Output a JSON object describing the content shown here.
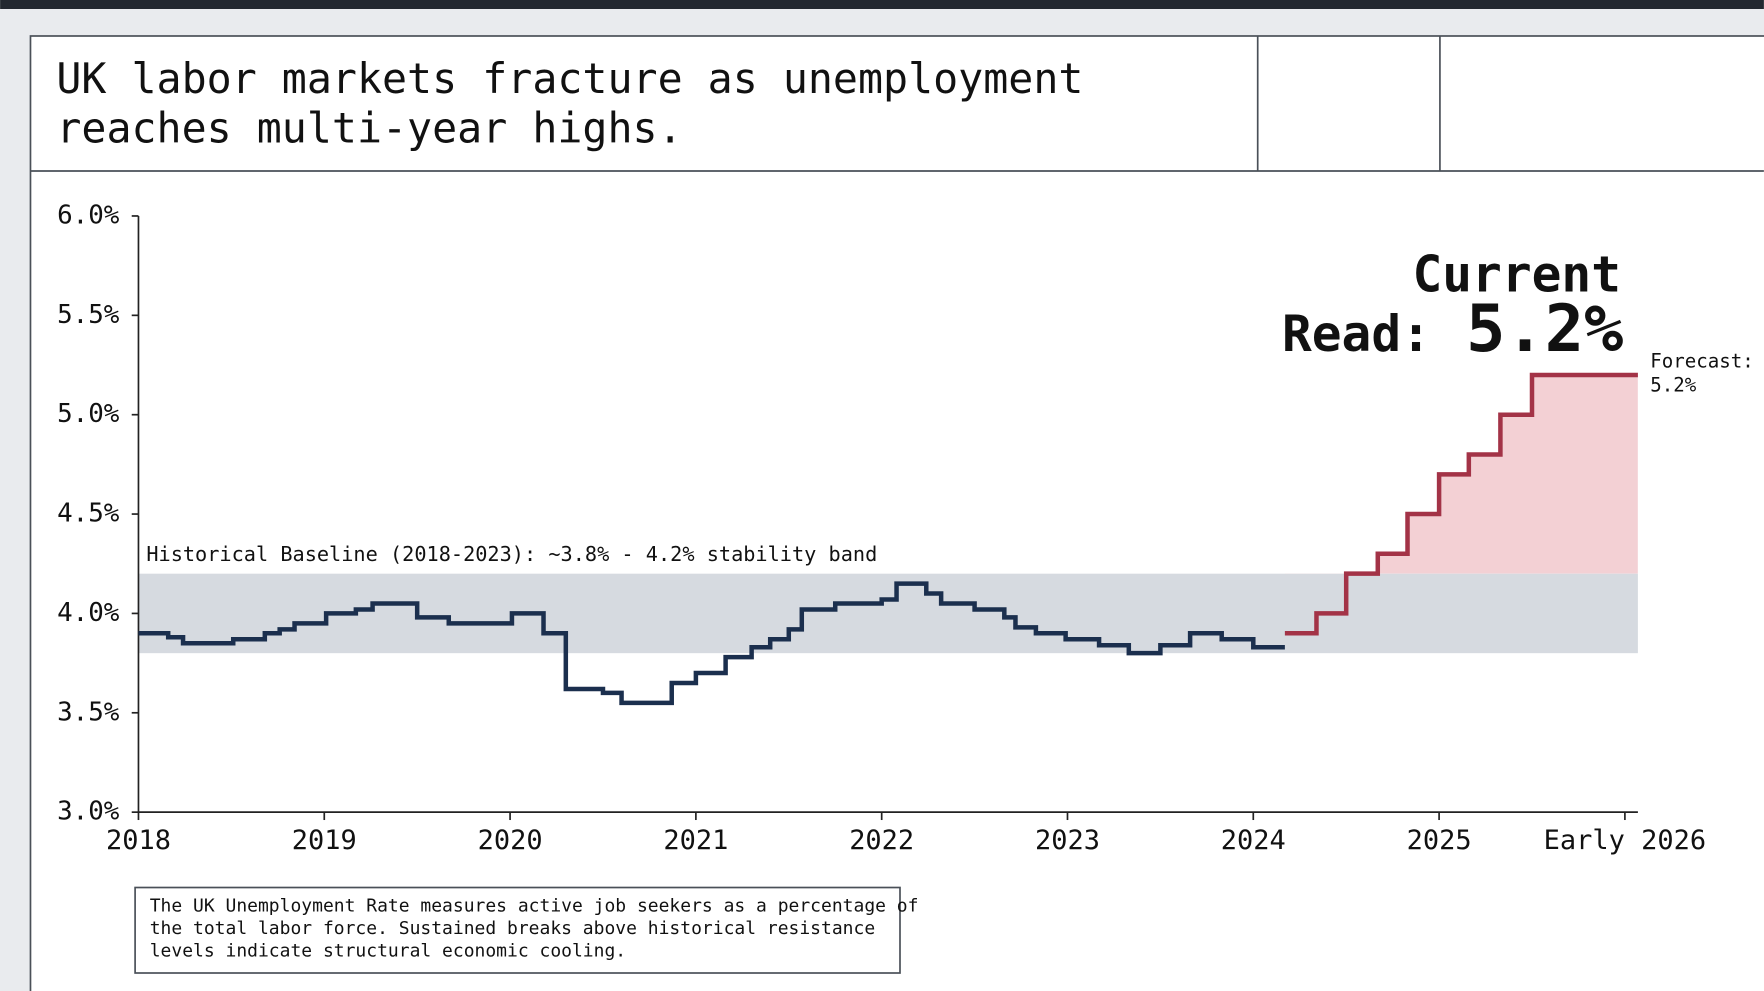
{
  "chart_data": {
    "type": "step",
    "title": [
      "UK labor markets fracture as unemployment",
      "reaches multi-year highs."
    ],
    "x": [
      2018,
      2018.16,
      2018.24,
      2018.51,
      2018.68,
      2018.76,
      2018.84,
      2019.01,
      2019.17,
      2019.26,
      2019.5,
      2019.67,
      2020.01,
      2020.18,
      2020.3,
      2020.5,
      2020.6,
      2020.87,
      2021.0,
      2021.16,
      2021.3,
      2021.4,
      2021.5,
      2021.57,
      2021.75,
      2022.0,
      2022.08,
      2022.24,
      2022.32,
      2022.5,
      2022.66,
      2022.72,
      2022.83,
      2022.99,
      2023.17,
      2023.33,
      2023.5,
      2023.66,
      2023.83,
      2024.0,
      2024.17,
      2024.34,
      2024.5,
      2024.67,
      2024.83,
      2025.0,
      2025.16,
      2025.33,
      2025.5,
      2026.07
    ],
    "series": [
      {
        "color": "#1b2f4e",
        "values": [
          3.9,
          3.88,
          3.85,
          3.87,
          3.9,
          3.92,
          3.95,
          4.0,
          4.02,
          4.05,
          3.98,
          3.95,
          4.0,
          3.9,
          3.62,
          3.6,
          3.55,
          3.65,
          3.7,
          3.78,
          3.83,
          3.87,
          3.92,
          4.02,
          4.05,
          4.07,
          4.15,
          4.1,
          4.05,
          4.02,
          3.98,
          3.93,
          3.9,
          3.87,
          3.84,
          3.8,
          3.84,
          3.9,
          3.87,
          3.83,
          3.83,
          null,
          null,
          null,
          null,
          null,
          null,
          null,
          null,
          null
        ]
      },
      {
        "color": "#a33347",
        "fill": "#f3d0d4",
        "values": [
          null,
          null,
          null,
          null,
          null,
          null,
          null,
          null,
          null,
          null,
          null,
          null,
          null,
          null,
          null,
          null,
          null,
          null,
          null,
          null,
          null,
          null,
          null,
          null,
          null,
          null,
          null,
          null,
          null,
          null,
          null,
          null,
          null,
          null,
          null,
          null,
          null,
          null,
          null,
          null,
          3.9,
          4.0,
          4.2,
          4.3,
          4.5,
          4.7,
          4.8,
          5.0,
          5.2,
          5.2
        ]
      }
    ],
    "xlim": [
      2018,
      2026.07
    ],
    "xticks": [
      2018,
      2019,
      2020,
      2021,
      2022,
      2023,
      2024,
      2025,
      {
        "value": 2026,
        "label": "Early 2026"
      }
    ],
    "ylim": [
      3.0,
      6.0
    ],
    "yticks": [
      {
        "value": 3.0,
        "label": "3.0%"
      },
      {
        "value": 3.5,
        "label": "3.5%"
      },
      {
        "value": 4.0,
        "label": "4.0%"
      },
      {
        "value": 4.5,
        "label": "4.5%"
      },
      {
        "value": 5.0,
        "label": "5.0%"
      },
      {
        "value": 5.5,
        "label": "5.5%"
      },
      {
        "value": 6.0,
        "label": "6.0%"
      }
    ],
    "band": [
      3.8,
      4.2
    ],
    "band_color": "#d6dae0",
    "band_label": "Historical Baseline (2018-2023): ~3.8% - 4.2% stability band",
    "callout": {
      "lines": [
        "Current",
        "Read:"
      ],
      "value_label": "5.2%"
    },
    "forecast_label": [
      "Forecast:",
      "5.2%"
    ],
    "note": [
      "The UK Unemployment Rate measures active job seekers as a percentage of",
      "the total labor force. Sustained breaks above historical resistance",
      "levels indicate structural economic cooling."
    ]
  }
}
